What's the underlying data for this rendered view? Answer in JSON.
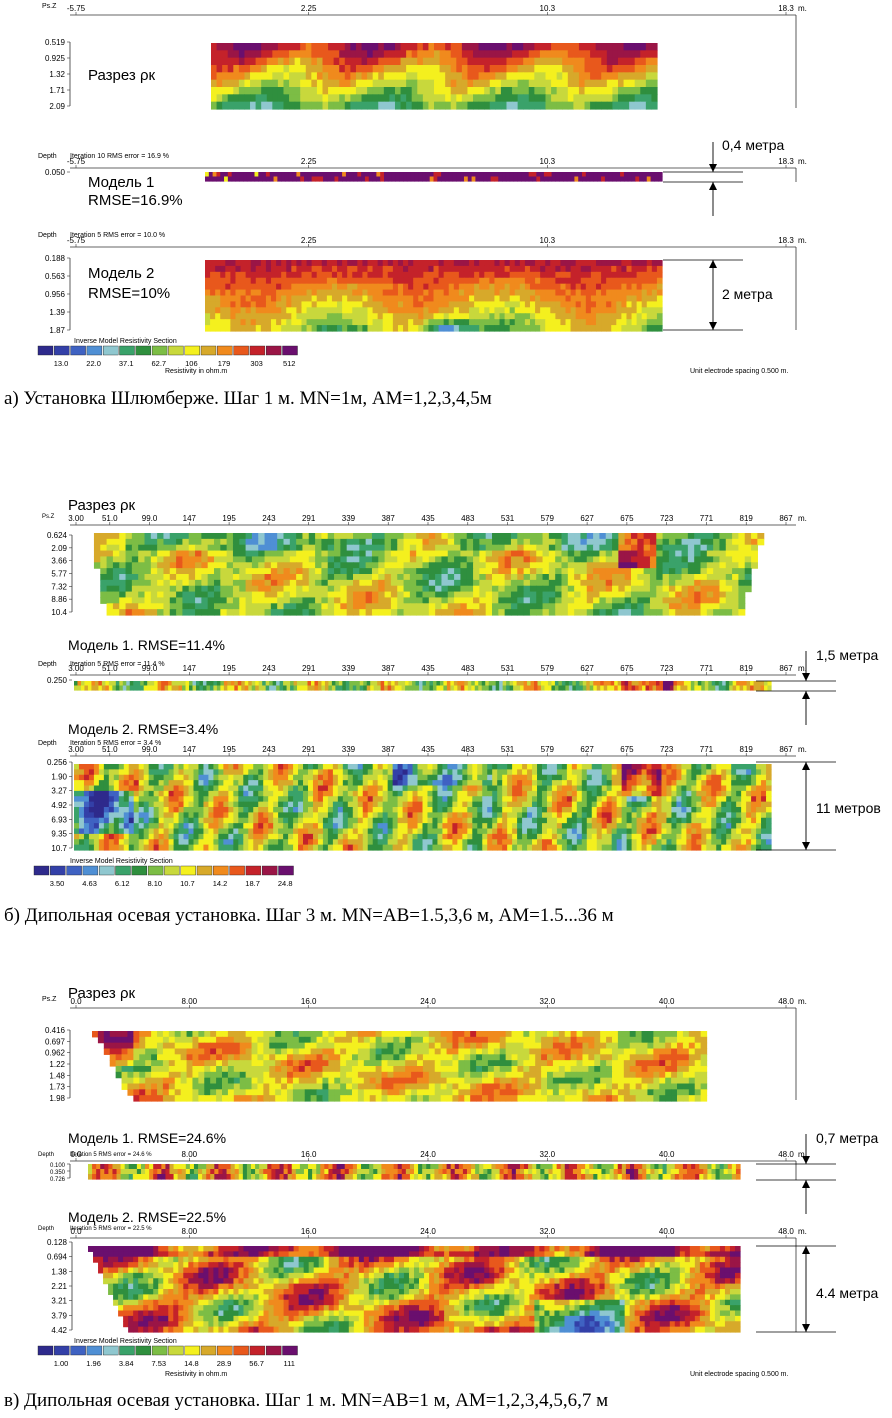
{
  "colors": {
    "scale": [
      "#2e2a8c",
      "#3340a8",
      "#3f62c2",
      "#4f8fd4",
      "#8fc7cf",
      "#3aa26a",
      "#2f8f3e",
      "#7cbd45",
      "#c8d83c",
      "#f4f01e",
      "#d7a92a",
      "#f08a1d",
      "#e8581c",
      "#c4222a",
      "#9a1546",
      "#6a0f6e"
    ]
  },
  "panel_a": {
    "caption": "а) Установка Шлюмберже. Шаг 1 м. MN=1м, AM=1,2,3,4,5м",
    "top": {
      "axis_label": "Ps.Z",
      "unit": "m.",
      "ticks": [
        "-5.75",
        "2.25",
        "10.3",
        "18.3"
      ],
      "depths": [
        "0.519",
        "0.925",
        "1.32",
        "1.71",
        "2.09"
      ],
      "title": "Разрез ρк"
    },
    "model1": {
      "depth_label": "Depth",
      "iteration": "Iteration 10 RMS error = 16.9 %",
      "ticks": [
        "-5.75",
        "2.25",
        "10.3",
        "18.3"
      ],
      "unit": "m.",
      "depths": [
        "0.050"
      ],
      "title": "Модель 1",
      "subtitle": "RMSE=16.9%",
      "thickness": "0,4 метра"
    },
    "model2": {
      "depth_label": "Depth",
      "iteration": "Iteration 5 RMS error = 10.0 %",
      "ticks": [
        "-5.75",
        "2.25",
        "10.3",
        "18.3"
      ],
      "unit": "m.",
      "depths": [
        "0.188",
        "0.563",
        "0.956",
        "1.39",
        "1.87"
      ],
      "title": "Модель 2",
      "subtitle": "RMSE=10%",
      "thickness": "2 метра"
    },
    "legend": {
      "title": "Inverse Model Resistivity Section",
      "values": [
        "13.0",
        "22.0",
        "37.1",
        "62.7",
        "106",
        "179",
        "303",
        "512"
      ],
      "unit_label": "Resistivity in ohm.m",
      "spacing": "Unit electrode spacing 0.500 m."
    }
  },
  "panel_b": {
    "caption": "б) Дипольная осевая установка. Шаг 3 м. MN=AB=1.5,3,6 м, AM=1.5...36 м",
    "top": {
      "axis_label": "Ps.Z",
      "unit": "m.",
      "title": "Разрез ρк",
      "ticks": [
        "3.00",
        "51.0",
        "99.0",
        "147",
        "195",
        "243",
        "291",
        "339",
        "387",
        "435",
        "483",
        "531",
        "579",
        "627",
        "675",
        "723",
        "771",
        "819",
        "867"
      ],
      "depths": [
        "0.624",
        "2.09",
        "3.66",
        "5.77",
        "7.32",
        "8.86",
        "10.4"
      ]
    },
    "model1": {
      "title": "Модель 1. RMSE=11.4%",
      "depth_label": "Depth",
      "iteration": "Iteration 5 RMS error = 11.4 %",
      "ticks": [
        "3.00",
        "51.0",
        "99.0",
        "147",
        "195",
        "243",
        "291",
        "339",
        "387",
        "435",
        "483",
        "531",
        "579",
        "627",
        "675",
        "723",
        "771",
        "819",
        "867"
      ],
      "depths": [
        "0.250"
      ],
      "thickness": "1,5 метра",
      "unit": "m."
    },
    "model2": {
      "title": "Модель 2. RMSE=3.4%",
      "depth_label": "Depth",
      "iteration": "Iteration 5 RMS error = 3.4 %",
      "ticks": [
        "3.00",
        "51.0",
        "99.0",
        "147",
        "195",
        "243",
        "291",
        "339",
        "387",
        "435",
        "483",
        "531",
        "579",
        "627",
        "675",
        "723",
        "771",
        "819",
        "867"
      ],
      "depths": [
        "0.256",
        "1.90",
        "3.27",
        "4.92",
        "6.93",
        "9.35",
        "10.7"
      ],
      "thickness": "11 метров",
      "unit": "m."
    },
    "legend": {
      "title": "Inverse Model Resistivity Section",
      "values": [
        "3.50",
        "4.63",
        "6.12",
        "8.10",
        "10.7",
        "14.2",
        "18.7",
        "24.8"
      ]
    }
  },
  "panel_c": {
    "caption": "в) Дипольная осевая установка. Шаг 1 м. MN=AB=1 м, AM=1,2,3,4,5,6,7 м",
    "top": {
      "axis_label": "Ps.Z",
      "unit": "m.",
      "title": "Разрез ρк",
      "ticks": [
        "0.0",
        "8.00",
        "16.0",
        "24.0",
        "32.0",
        "40.0",
        "48.0"
      ],
      "depths": [
        "0.416",
        "0.697",
        "0.962",
        "1.22",
        "1.48",
        "1.73",
        "1.98"
      ]
    },
    "model1": {
      "title": "Модель 1. RMSE=24.6%",
      "depth_label": "Depth",
      "iteration": "Iteration 5 RMS error = 24.6 %",
      "ticks": [
        "0.0",
        "8.00",
        "16.0",
        "24.0",
        "32.0",
        "40.0",
        "48.0"
      ],
      "depths": [
        "0.100",
        "0.350",
        "0.726"
      ],
      "thickness": "0,7 метра",
      "unit": "m."
    },
    "model2": {
      "title": "Модель 2. RMSE=22.5%",
      "depth_label": "Depth",
      "iteration": "Iteration 5 RMS error = 22.5 %",
      "ticks": [
        "0.0",
        "8.00",
        "16.0",
        "24.0",
        "32.0",
        "40.0",
        "48.0"
      ],
      "depths": [
        "0.128",
        "0.694",
        "1.38",
        "2.21",
        "3.21",
        "3.79",
        "4.42"
      ],
      "thickness": "4.4 метра",
      "unit": "m."
    },
    "legend": {
      "title": "Inverse Model Resistivity Section",
      "values": [
        "1.00",
        "1.96",
        "3.84",
        "7.53",
        "14.8",
        "28.9",
        "56.7",
        "111"
      ],
      "unit_label": "Resistivity in ohm.m",
      "spacing": "Unit electrode spacing 0.500 m."
    }
  }
}
